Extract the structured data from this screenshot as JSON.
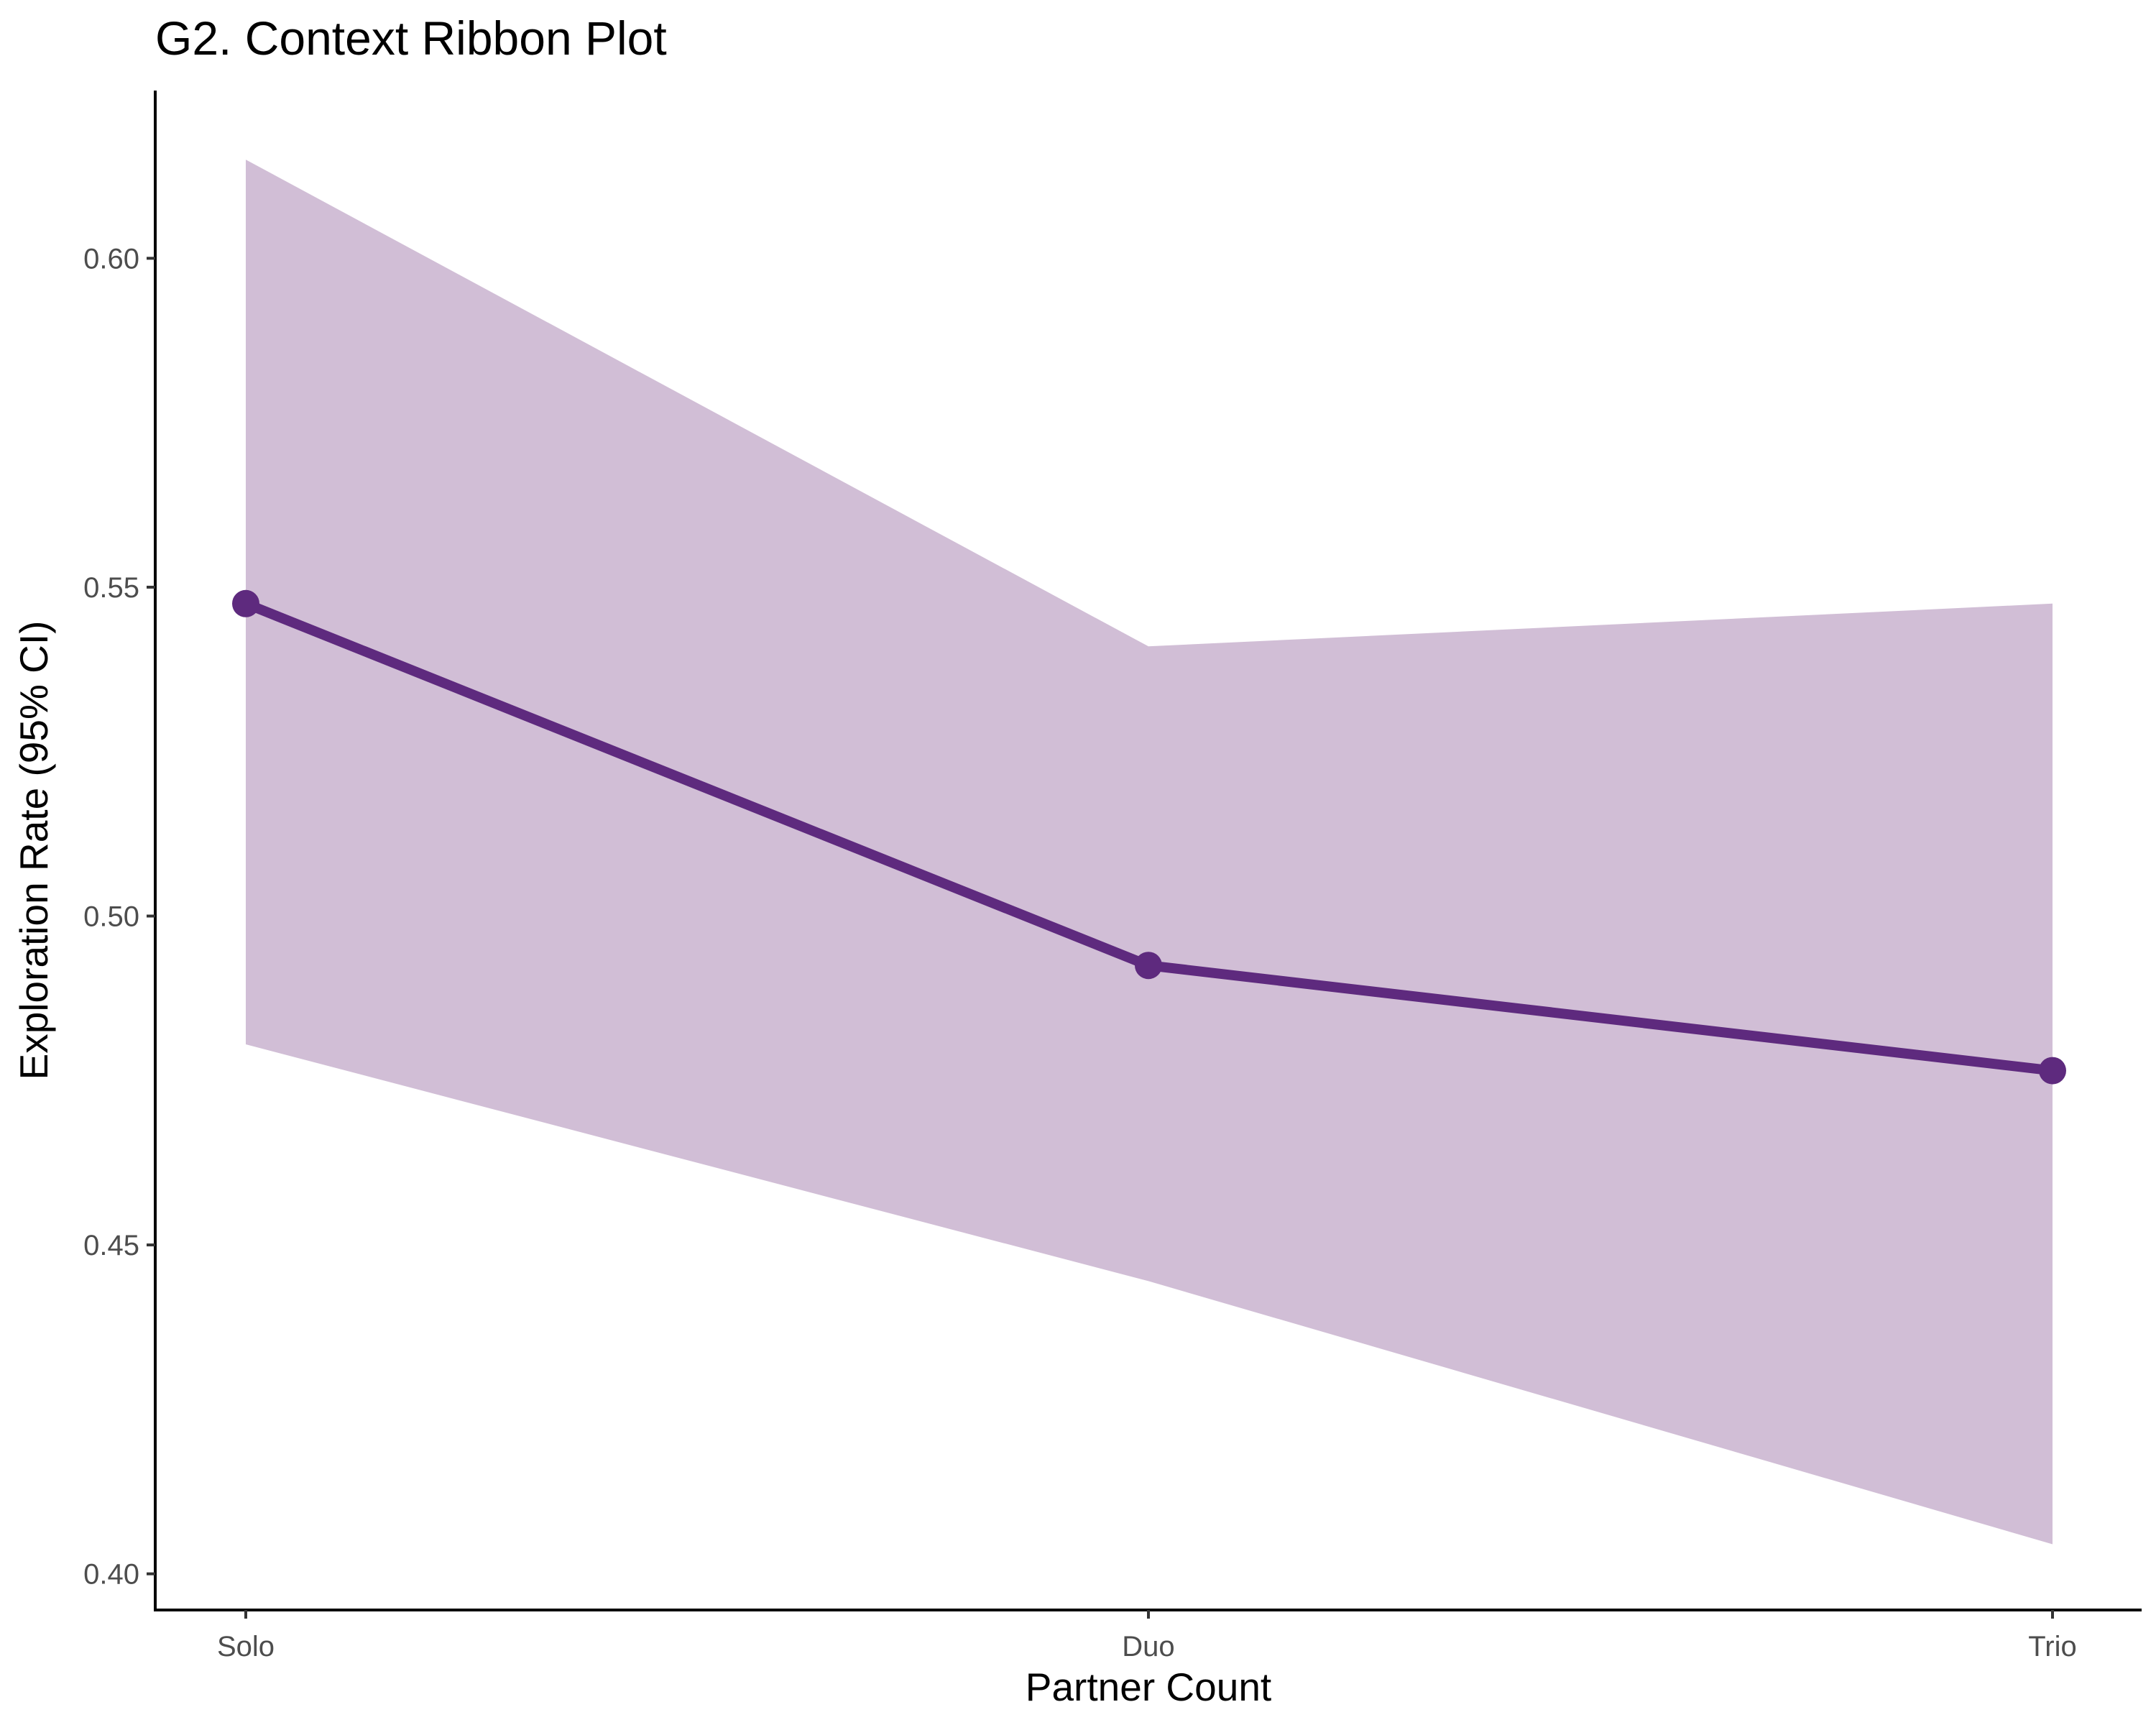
{
  "chart_data": {
    "type": "line",
    "title": "G2. Context Ribbon Plot",
    "xlabel": "Partner Count",
    "ylabel": "Exploration Rate (95% CI)",
    "categories": [
      "Solo",
      "Duo",
      "Trio"
    ],
    "series": [
      {
        "values": [
          0.5475,
          0.4925,
          0.4765
        ],
        "ci_lower": [
          0.4805,
          0.4445,
          0.4045
        ],
        "ci_upper": [
          0.615,
          0.541,
          0.5475
        ]
      }
    ],
    "y_ticks": [
      0.4,
      0.45,
      0.5,
      0.55,
      0.6
    ],
    "y_tick_labels": [
      "0.40",
      "0.45",
      "0.50",
      "0.55",
      "0.60"
    ],
    "ylim": [
      0.3945,
      0.6255
    ],
    "grid": false,
    "legend": "none",
    "colors": {
      "line": "#5e2a7e",
      "ribbon": "#d1bed6"
    }
  }
}
